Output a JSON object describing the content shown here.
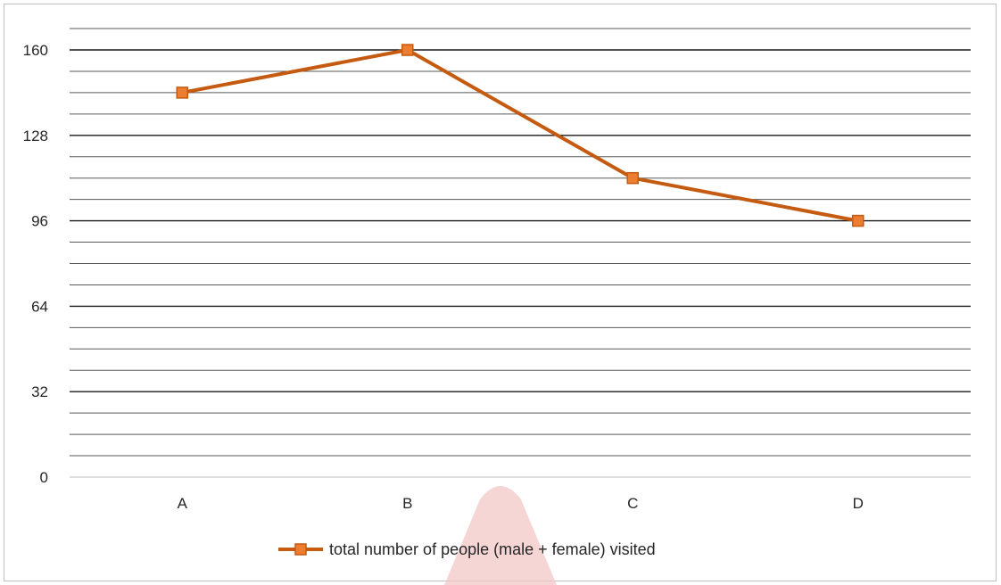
{
  "chart_data": {
    "type": "line",
    "categories": [
      "A",
      "B",
      "C",
      "D"
    ],
    "series": [
      {
        "name": "total number of people (male + female) visited",
        "values": [
          144,
          160,
          112,
          96
        ],
        "color": "#C55A11"
      }
    ],
    "y_ticks": [
      0,
      32,
      64,
      96,
      128,
      160
    ],
    "ylim": [
      0,
      160
    ],
    "grid": true,
    "legend_position": "bottom",
    "title": "",
    "xlabel": "",
    "ylabel": ""
  }
}
